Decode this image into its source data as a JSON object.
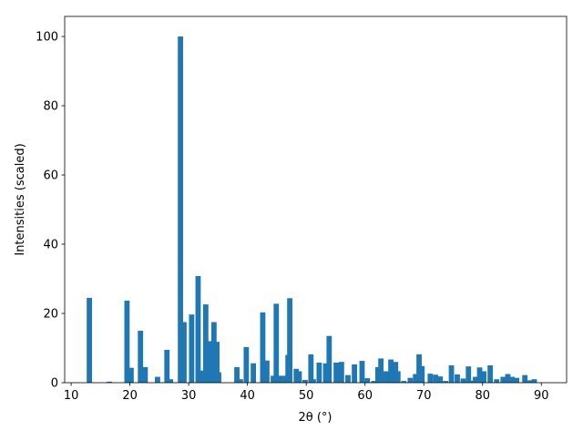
{
  "chart_data": {
    "type": "bar",
    "xlabel": "2θ (°)",
    "ylabel": "Intensities (scaled)",
    "color": "#1f77b4",
    "x": [
      13.1,
      16.5,
      19.5,
      20.2,
      21.8,
      22.6,
      24.7,
      26.3,
      26.9,
      28.6,
      29.2,
      30.5,
      31.6,
      32.2,
      32.9,
      33.6,
      34.3,
      34.8,
      35.1,
      38.2,
      38.8,
      39.8,
      41.0,
      42.6,
      43.3,
      44.4,
      44.9,
      45.5,
      46.4,
      46.9,
      47.2,
      48.3,
      48.8,
      49.8,
      50.8,
      51.2,
      52.2,
      53.3,
      53.9,
      55.1,
      56.0,
      57.1,
      58.2,
      59.5,
      60.4,
      61.5,
      62.2,
      62.7,
      63.6,
      64.4,
      65.2,
      65.6,
      66.6,
      67.7,
      68.6,
      69.2,
      69.7,
      71.1,
      72.0,
      72.8,
      73.7,
      74.7,
      75.7,
      76.7,
      77.6,
      78.2,
      78.8,
      79.5,
      80.2,
      81.3,
      82.4,
      83.5,
      84.3,
      85.0,
      85.8,
      87.2,
      88.1,
      88.8
    ],
    "values": [
      24.5,
      0.3,
      23.7,
      4.3,
      15,
      4.5,
      1.7,
      9.5,
      1,
      100,
      17.5,
      19.7,
      30.8,
      3.5,
      22.6,
      12,
      17.5,
      11.8,
      3,
      4.5,
      1,
      10.3,
      5.6,
      20.3,
      6.4,
      2,
      22.8,
      2,
      2,
      8,
      24.4,
      4,
      3.3,
      0.8,
      8.2,
      1,
      5.8,
      5.6,
      13.5,
      5.8,
      6,
      2.2,
      5.3,
      6.3,
      1.3,
      0.5,
      4.5,
      7,
      3.3,
      6.7,
      6,
      3.3,
      0.5,
      1.4,
      2.5,
      8.2,
      4.8,
      2.6,
      2.3,
      1.8,
      0.5,
      5,
      2.4,
      1.2,
      4.7,
      0.6,
      1.7,
      4.4,
      3.3,
      5,
      1,
      1.7,
      2.5,
      1.7,
      1.4,
      2.2,
      0.7,
      1
    ],
    "xlim": [
      8.9,
      94.3
    ],
    "ylim": [
      0,
      105.8
    ],
    "xticks": [
      10,
      20,
      30,
      40,
      50,
      60,
      70,
      80,
      90
    ],
    "yticks": [
      0,
      20,
      40,
      60,
      80,
      100
    ]
  }
}
